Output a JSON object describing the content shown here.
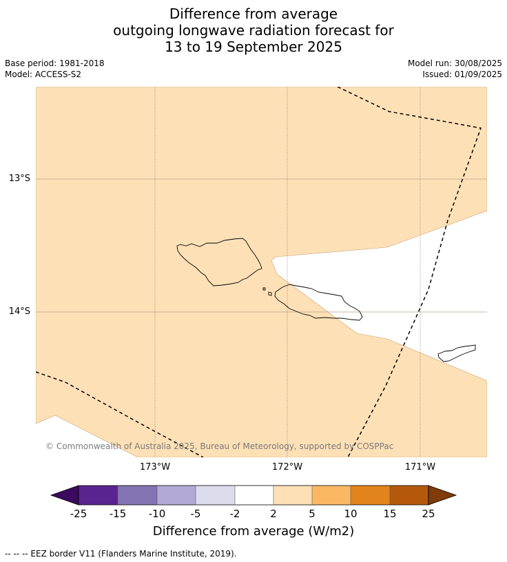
{
  "title": {
    "line1": "Difference from average",
    "line2": "outgoing longwave radiation forecast for",
    "line3": "13 to 19 September 2025"
  },
  "meta": {
    "base_period": "Base period: 1981-2018",
    "model": "Model: ACCESS-S2",
    "model_run": "Model run: 30/08/2025",
    "issued": "Issued: 01/09/2025"
  },
  "map": {
    "lat_labels": [
      "13°S",
      "14°S"
    ],
    "lon_labels": [
      "173°W",
      "172°W",
      "171°W"
    ],
    "copyright": "© Commonwealth of Australia 2025, Bureau of Meteorology, supported by COSPPac",
    "shading_category": "2 to 5",
    "fill_color": "#fde0b6",
    "background_color": "#ffffff"
  },
  "colorbar": {
    "title": "Difference from average (W/m2)",
    "ticks": [
      "-25",
      "-15",
      "-10",
      "-5",
      "-2",
      "2",
      "5",
      "10",
      "15",
      "25"
    ],
    "colors": [
      "#5a2490",
      "#8474b3",
      "#b2aad4",
      "#dcdced",
      "#ffffff",
      "#fde0b6",
      "#fbb864",
      "#e1841c",
      "#b4590b"
    ],
    "low_extend_color": "#3b0a5e",
    "high_extend_color": "#7f3c0a"
  },
  "legend": {
    "text": "--  --  -- EEZ border V11 (Flanders Marine Institute, 2019)."
  }
}
